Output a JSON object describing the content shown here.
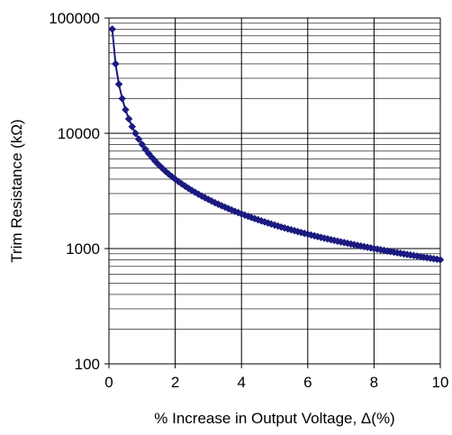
{
  "chart_data": {
    "type": "line",
    "title": "",
    "xlabel": "% Increase in Output Voltage, Δ(%)",
    "ylabel": "Trim Resistance (kΩ)",
    "xlim": [
      0,
      10
    ],
    "ylim": [
      100,
      100000
    ],
    "yscale": "log",
    "grid": true,
    "xticks": [
      "0",
      "2",
      "4",
      "6",
      "8",
      "10"
    ],
    "yticks": [
      "100",
      "1000",
      "10000",
      "100000"
    ],
    "marker": "diamond",
    "colors": {
      "series": "#1a1a80",
      "axis": "#000000",
      "grid": "#000000"
    },
    "series": [
      {
        "x": [
          0.1,
          0.2,
          0.3,
          0.4,
          0.5,
          0.6,
          0.7,
          0.8,
          0.9,
          1.0,
          1.1,
          1.2,
          1.3,
          1.4,
          1.5,
          1.6,
          1.7,
          1.8,
          1.9,
          2.0,
          2.1,
          2.2,
          2.3,
          2.4,
          2.5,
          2.6,
          2.7,
          2.8,
          2.9,
          3.0,
          3.1,
          3.2,
          3.3,
          3.4,
          3.5,
          3.6,
          3.7,
          3.8,
          3.9,
          4.0,
          4.1,
          4.2,
          4.3,
          4.4,
          4.5,
          4.6,
          4.7,
          4.8,
          4.9,
          5.0,
          5.1,
          5.2,
          5.3,
          5.4,
          5.5,
          5.6,
          5.7,
          5.8,
          5.9,
          6.0,
          6.1,
          6.2,
          6.3,
          6.4,
          6.5,
          6.6,
          6.7,
          6.8,
          6.9,
          7.0,
          7.1,
          7.2,
          7.3,
          7.4,
          7.5,
          7.6,
          7.7,
          7.8,
          7.9,
          8.0,
          8.1,
          8.2,
          8.3,
          8.4,
          8.5,
          8.6,
          8.7,
          8.8,
          8.9,
          9.0,
          9.1,
          9.2,
          9.3,
          9.4,
          9.5,
          9.6,
          9.7,
          9.8,
          9.9,
          10.0
        ],
        "values": [
          80000,
          40000,
          26667,
          20000,
          16000,
          13333,
          11429,
          10000,
          8889,
          8000,
          7273,
          6667,
          6154,
          5714,
          5333,
          5000,
          4706,
          4444,
          4211,
          4000,
          3810,
          3636,
          3478,
          3333,
          3200,
          3077,
          2963,
          2857,
          2759,
          2667,
          2581,
          2500,
          2424,
          2353,
          2286,
          2222,
          2162,
          2105,
          2051,
          2000,
          1951,
          1905,
          1860,
          1818,
          1778,
          1739,
          1702,
          1667,
          1633,
          1600,
          1569,
          1538,
          1509,
          1481,
          1455,
          1429,
          1404,
          1379,
          1356,
          1333,
          1311,
          1290,
          1270,
          1250,
          1231,
          1212,
          1194,
          1176,
          1159,
          1143,
          1127,
          1111,
          1096,
          1081,
          1067,
          1053,
          1039,
          1026,
          1013,
          1000,
          988,
          976,
          964,
          952,
          941,
          930,
          920,
          909,
          899,
          889,
          879,
          870,
          860,
          851,
          842,
          833,
          825,
          816,
          808,
          800
        ]
      }
    ]
  }
}
